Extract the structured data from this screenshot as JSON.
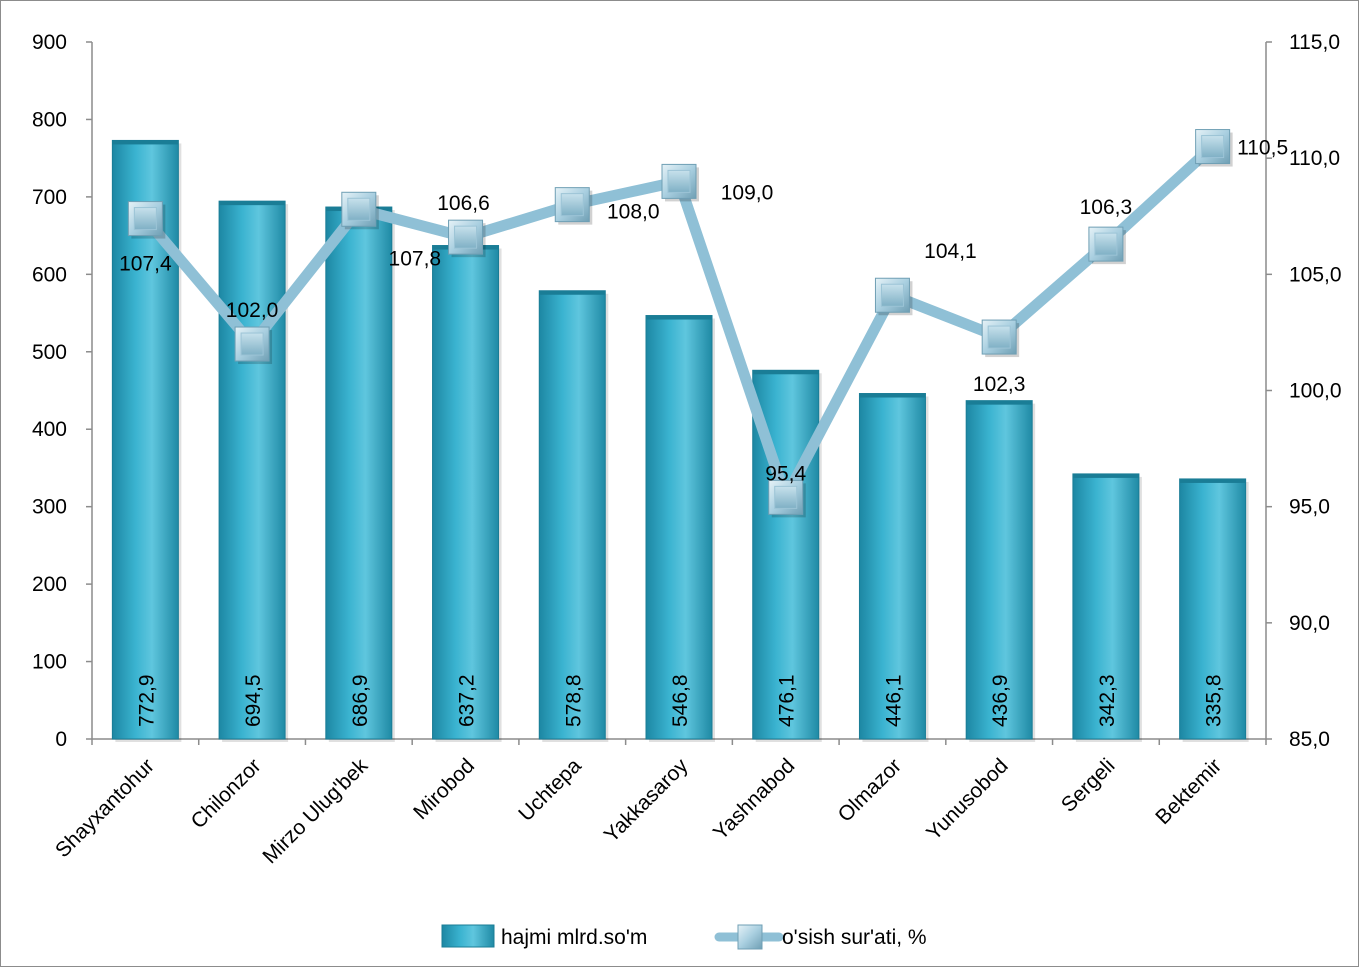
{
  "chart_data": {
    "type": "bar",
    "categories": [
      "Shayxantohur",
      "Chilonzor",
      "Mirzo Ulug'bek",
      "Mirobod",
      "Uchtepa",
      "Yakkasaroy",
      "Yashnabod",
      "Olmazor",
      "Yunusobod",
      "Sergeli",
      "Bektemir"
    ],
    "series": [
      {
        "name": "hajmi mlrd.so'm",
        "type": "bar",
        "axis": "left",
        "values": [
          772.9,
          694.5,
          686.9,
          637.2,
          578.8,
          546.8,
          476.1,
          446.1,
          436.9,
          342.3,
          335.8
        ],
        "labels": [
          "772,9",
          "694,5",
          "686,9",
          "637,2",
          "578,8",
          "546,8",
          "476,1",
          "446,1",
          "436,9",
          "342,3",
          "335,8"
        ]
      },
      {
        "name": "o'sish sur'ati, %",
        "type": "line",
        "axis": "right",
        "values": [
          107.4,
          102.0,
          107.8,
          106.6,
          108.0,
          109.0,
          95.4,
          104.1,
          102.3,
          106.3,
          110.5
        ],
        "labels": [
          "107,4",
          "102,0",
          "107,8",
          "106,6",
          "108,0",
          "109,0",
          "95,4",
          "104,1",
          "102,3",
          "106,3",
          "110,5"
        ]
      }
    ],
    "y_left": {
      "ylim": [
        0,
        900
      ],
      "ticks": [
        0,
        100,
        200,
        300,
        400,
        500,
        600,
        700,
        800,
        900
      ],
      "tick_labels": [
        "0",
        "100",
        "200",
        "300",
        "400",
        "500",
        "600",
        "700",
        "800",
        "900"
      ]
    },
    "y_right": {
      "ylim": [
        85,
        115
      ],
      "ticks": [
        85,
        90,
        95,
        100,
        105,
        110,
        115
      ],
      "tick_labels": [
        "85,0",
        "90,0",
        "95,0",
        "100,0",
        "105,0",
        "110,0",
        "115,0"
      ]
    },
    "grid": false,
    "legend_position": "bottom",
    "colors": {
      "bar": "#2ea8c6",
      "bar_light": "#5cc3dc",
      "bar_dark": "#1a7d96",
      "line": "#8fc0d6",
      "marker": "#a9cfe0",
      "axis": "#8c8c8c"
    }
  }
}
